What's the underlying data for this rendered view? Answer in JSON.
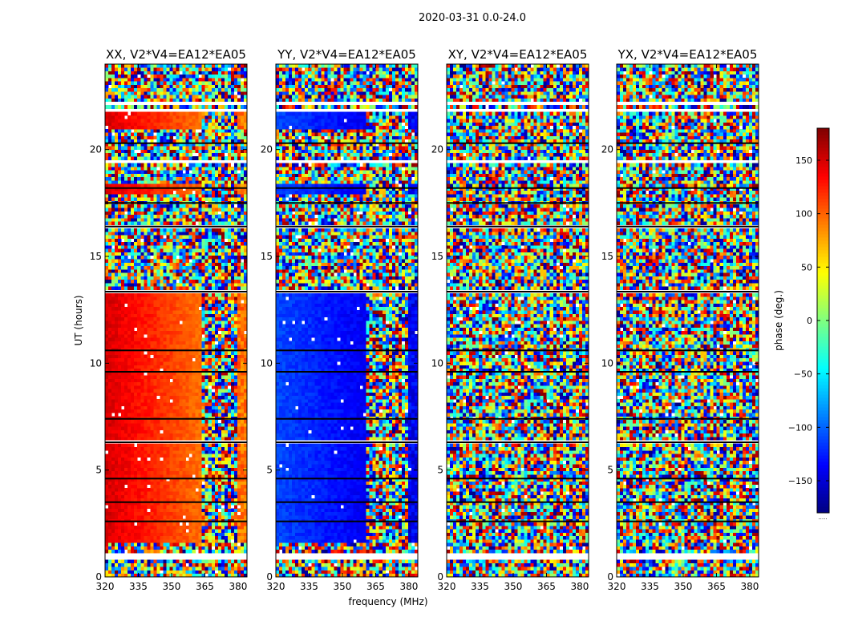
{
  "figure_title": "2020-03-31 0.0-24.0",
  "xlabel": "frequency (MHz)",
  "ylabel": "UT (hours)",
  "colorbar_label": "phase (deg.)",
  "colorbar_overflow_label": ".....",
  "chart_data": [
    {
      "type": "heatmap",
      "title": "XX, V2*V4=EA12*EA05",
      "xlim": [
        320,
        384
      ],
      "ylim": [
        0,
        24
      ],
      "xticks": [
        320,
        335,
        350,
        365,
        380
      ],
      "yticks": [
        0,
        5,
        10,
        15,
        20
      ],
      "xlabel": "",
      "ylabel": "UT (hours)",
      "pattern": {
        "coherent": true,
        "low_band_phase_deg": 150,
        "high_band_phase_deg": 95,
        "band_edge_mhz": 364,
        "noise_beyond_mhz": 364
      }
    },
    {
      "type": "heatmap",
      "title": "YY, V2*V4=EA12*EA05",
      "xlim": [
        320,
        384
      ],
      "ylim": [
        0,
        24
      ],
      "xticks": [
        320,
        335,
        350,
        365,
        380
      ],
      "yticks": [
        0,
        5,
        10,
        15,
        20
      ],
      "xlabel": "frequency (MHz)",
      "ylabel": "",
      "pattern": {
        "coherent": true,
        "low_band_phase_deg": -110,
        "high_band_phase_deg": -140,
        "band_edge_mhz": 361,
        "noise_beyond_mhz": 361
      }
    },
    {
      "type": "heatmap",
      "title": "XY, V2*V4=EA12*EA05",
      "xlim": [
        320,
        384
      ],
      "ylim": [
        0,
        24
      ],
      "xticks": [
        320,
        335,
        350,
        365,
        380
      ],
      "yticks": [
        0,
        5,
        10,
        15,
        20
      ],
      "xlabel": "",
      "ylabel": "",
      "pattern": {
        "coherent": false
      }
    },
    {
      "type": "heatmap",
      "title": "YX, V2*V4=EA12*EA05",
      "xlim": [
        320,
        384
      ],
      "ylim": [
        0,
        24
      ],
      "xticks": [
        320,
        335,
        350,
        365,
        380
      ],
      "yticks": [
        0,
        5,
        10,
        15,
        20
      ],
      "xlabel": "",
      "ylabel": "",
      "pattern": {
        "coherent": false
      }
    }
  ],
  "colorbar": {
    "min": -180,
    "max": 180,
    "ticks": [
      -150,
      -100,
      -50,
      0,
      50,
      100,
      150
    ],
    "colormap": "jet"
  },
  "flagged_rows_ut": [
    [
      0.85,
      1.15
    ],
    [
      1.4,
      1.45
    ],
    [
      3.3,
      3.35
    ],
    [
      6.3,
      6.35
    ],
    [
      13.3,
      13.45
    ],
    [
      16.3,
      16.45
    ],
    [
      18.2,
      18.3
    ],
    [
      19.3,
      19.5
    ],
    [
      20.9,
      21.0
    ],
    [
      21.7,
      21.9
    ],
    [
      22.1,
      22.2
    ]
  ]
}
